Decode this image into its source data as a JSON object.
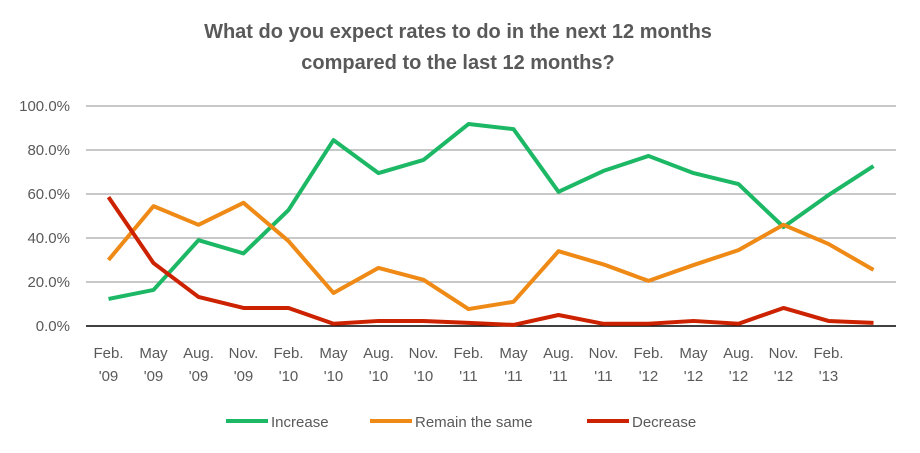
{
  "chart_data": {
    "type": "line",
    "title": [
      "What do you expect rates to do in the next 12 months",
      "compared to the last 12 months?"
    ],
    "xlabel": "",
    "ylabel": "",
    "categories": [
      [
        "Feb.",
        "'09"
      ],
      [
        "May",
        "'09"
      ],
      [
        "Aug.",
        "'09"
      ],
      [
        "Nov.",
        "'09"
      ],
      [
        "Feb.",
        "'10"
      ],
      [
        "May",
        "'10"
      ],
      [
        "Aug.",
        "'10"
      ],
      [
        "Nov.",
        "'10"
      ],
      [
        "Feb.",
        "'11"
      ],
      [
        "May",
        "'11"
      ],
      [
        "Aug.",
        "'11"
      ],
      [
        "Nov.",
        "'11"
      ],
      [
        "Feb.",
        "'12"
      ],
      [
        "May",
        "'12"
      ],
      [
        "Aug.",
        "'12"
      ],
      [
        "Nov.",
        "'12"
      ],
      [
        "Feb.",
        "'13"
      ],
      [
        "",
        ""
      ]
    ],
    "ylim": [
      0,
      100
    ],
    "yticks": [
      "0.0%",
      "20.0%",
      "40.0%",
      "60.0%",
      "80.0%",
      "100.0%"
    ],
    "grid": true,
    "legend_position": "bottom",
    "series": [
      {
        "name": "Increase",
        "color": "#1DB865",
        "values": [
          12.3,
          16.4,
          39.0,
          33.0,
          52.7,
          84.5,
          69.5,
          75.5,
          91.8,
          89.5,
          61.0,
          70.5,
          77.3,
          69.5,
          64.5,
          45.0,
          59.5,
          72.7
        ]
      },
      {
        "name": "Remain the same",
        "color": "#EE8A15",
        "values": [
          30.0,
          54.5,
          46.0,
          56.0,
          38.6,
          15.0,
          26.4,
          21.0,
          7.7,
          11.0,
          34.0,
          28.0,
          20.5,
          27.7,
          34.5,
          46.0,
          37.3,
          25.5
        ]
      },
      {
        "name": "Decrease",
        "color": "#CC2200",
        "values": [
          58.6,
          28.6,
          13.2,
          8.2,
          8.2,
          1.0,
          2.3,
          2.3,
          1.4,
          0.5,
          5.0,
          1.0,
          1.0,
          2.3,
          1.0,
          8.2,
          2.3,
          1.4
        ]
      }
    ]
  }
}
